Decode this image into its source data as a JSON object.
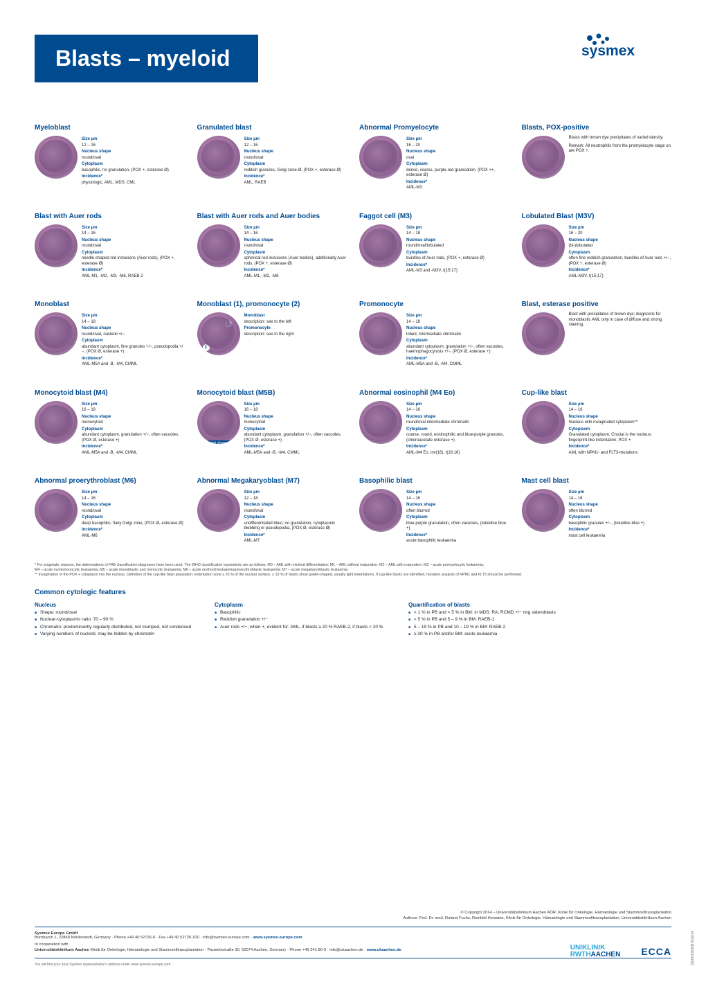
{
  "header": {
    "title": "Blasts – myeloid",
    "brand": "sysmex"
  },
  "cells": [
    {
      "title": "Myeloblast",
      "rows": [
        {
          "lbl": "Size µm",
          "val": "12 – 16"
        },
        {
          "lbl": "Nucleus shape",
          "val": "round/oval"
        },
        {
          "lbl": "Cytoplasm",
          "val": "basophilic, no granulation, (POX +, esterase Ø)"
        },
        {
          "lbl": "Incidence*",
          "val": "physiologic, AML, MDS, CML"
        }
      ]
    },
    {
      "title": "Granulated blast",
      "rows": [
        {
          "lbl": "Size µm",
          "val": "12 – 16"
        },
        {
          "lbl": "Nucleus shape",
          "val": "round/oval"
        },
        {
          "lbl": "Cytoplasm",
          "val": "reddish granules, Golgi zone Ø, (POX +, esterase Ø)"
        },
        {
          "lbl": "Incidence*",
          "val": "AML, RAEB"
        }
      ]
    },
    {
      "title": "Abnormal Promyelocyte",
      "rows": [
        {
          "lbl": "Size µm",
          "val": "16 – 20"
        },
        {
          "lbl": "Nucleus shape",
          "val": "oval"
        },
        {
          "lbl": "Cytoplasm",
          "val": "dense, coarse, purple-red granulation, (POX ++, esterase Ø)"
        },
        {
          "lbl": "Incidence*",
          "val": "AML-M3"
        }
      ]
    },
    {
      "title": "Blasts, POX-positive",
      "para": "Blasts with brown dye precipitates of varied density.\n\nRemark: All neutrophils from the promyelocyte stage on are POX +."
    },
    {
      "title": "Blast with Auer rods",
      "rows": [
        {
          "lbl": "Size µm",
          "val": "14 – 16"
        },
        {
          "lbl": "Nucleus shape",
          "val": "round/oval"
        },
        {
          "lbl": "Cytoplasm",
          "val": "needle-shaped red inclusions (Auer rods), (POX +, esterase Ø)"
        },
        {
          "lbl": "Incidence*",
          "val": "AML-M1, -M2, -M3, -M6, RAEB-2"
        }
      ]
    },
    {
      "title": "Blast with Auer rods and Auer bodies",
      "rows": [
        {
          "lbl": "Size µm",
          "val": "14 – 16"
        },
        {
          "lbl": "Nucleus shape",
          "val": "round/oval"
        },
        {
          "lbl": "Cytoplasm",
          "val": "spherical red inclusions (Auer bodies), additionally Auer rods, (POX +, esterase Ø)"
        },
        {
          "lbl": "Incidence*",
          "val": "AML-M1, -M2, -M6"
        }
      ]
    },
    {
      "title": "Faggot cell (M3)",
      "rows": [
        {
          "lbl": "Size µm",
          "val": "14 – 18"
        },
        {
          "lbl": "Nucleus shape",
          "val": "round/oval/lobulated"
        },
        {
          "lbl": "Cytoplasm",
          "val": "bundles of Auer rods, (POX +, esterase Ø)"
        },
        {
          "lbl": "Incidence*",
          "val": "AML-M3 and -M3V, t(15;17)"
        }
      ]
    },
    {
      "title": "Lobulated Blast (M3V)",
      "rows": [
        {
          "lbl": "Size µm",
          "val": "16 – 20"
        },
        {
          "lbl": "Nucleus shape",
          "val": "(bi-)lobulated"
        },
        {
          "lbl": "Cytoplasm",
          "val": "often fine reddish granulation, bundles of Auer rods +/−, (POX +, esterase Ø)"
        },
        {
          "lbl": "Incidence*",
          "val": "AML-M3V, t(15;17)"
        }
      ]
    },
    {
      "title": "Monoblast",
      "rows": [
        {
          "lbl": "Size µm",
          "val": "14 – 18"
        },
        {
          "lbl": "Nucleus shape",
          "val": "round/oval, nucleoli +/−"
        },
        {
          "lbl": "Cytoplasm",
          "val": "abundant cytoplasm, fine granules +/−, pseudopodia +/−, (POX Ø, esterase +)"
        },
        {
          "lbl": "Incidence*",
          "val": "AML-M5A and -B, -M4, CMML"
        }
      ]
    },
    {
      "title": "Monoblast (1), promonocyte (2)",
      "badges": [
        "1",
        "2"
      ],
      "rows": [
        {
          "lbl": "Monoblast",
          "val": "description: see to the left"
        },
        {
          "lbl": "Promonocyte",
          "val": "description: see to the right"
        }
      ]
    },
    {
      "title": "Promonocyte",
      "rows": [
        {
          "lbl": "Size µm",
          "val": "14 – 18"
        },
        {
          "lbl": "Nucleus shape",
          "val": "lobed, intermediate chromatin"
        },
        {
          "lbl": "Cytoplasm",
          "val": "abundant cytoplasm, granulation +/−, often vacuoles, haemophagocytosis +/−, (POX Ø, esterase +)"
        },
        {
          "lbl": "Incidence*",
          "val": "AML-M5A and -B, -M4, CMML"
        }
      ]
    },
    {
      "title": "Blast, esterase positive",
      "para": "Blast with precipitates of brown dye; diagnostic for monoblastic AML only in case of diffuse and strong staining."
    },
    {
      "title": "Monocytoid blast (M4)",
      "rows": [
        {
          "lbl": "Size µm",
          "val": "16 – 18"
        },
        {
          "lbl": "Nucleus shape",
          "val": "monocytoid"
        },
        {
          "lbl": "Cytoplasm",
          "val": "abundant cytoplasm, granulation +/−, often vacuoles, (POX Ø, esterase +)"
        },
        {
          "lbl": "Incidence*",
          "val": "AML-M5A and -B, -M4, CMML"
        }
      ]
    },
    {
      "title": "Monocytoid blast (M5B)",
      "overlay": "Platelet phagocytosis",
      "rows": [
        {
          "lbl": "Size µm",
          "val": "16 – 18"
        },
        {
          "lbl": "Nucleus shape",
          "val": "monocytoid"
        },
        {
          "lbl": "Cytoplasm",
          "val": "abundant cytoplasm, granulation +/−, often vacuoles, (POX Ø, esterase +)"
        },
        {
          "lbl": "Incidence*",
          "val": "AML-M5A and -B, -M4, CMML"
        }
      ]
    },
    {
      "title": "Abnormal eosinophil (M4 Eo)",
      "rows": [
        {
          "lbl": "Size µm",
          "val": "14 – 16"
        },
        {
          "lbl": "Nucleus shape",
          "val": "round/oval intermediate chromatin"
        },
        {
          "lbl": "Cytoplasm",
          "val": "coarse, round, eosinophilic and blue-purple granules, (chloroacetate esterase +)"
        },
        {
          "lbl": "Incidence*",
          "val": "AML-M4 Eo, inv(16), t(16;16)"
        }
      ]
    },
    {
      "title": "Cup-like blast",
      "rows": [
        {
          "lbl": "Size µm",
          "val": "14 – 16"
        },
        {
          "lbl": "Nucleus shape",
          "val": "Nucleus with invaginated cytoplasm**"
        },
        {
          "lbl": "Cytoplasm",
          "val": "Granulated cytoplasm. Crucial is the nucleus: fingerprint-like indentation; POX +"
        },
        {
          "lbl": "Incidence*",
          "val": "AML with NPM1- and FLT3-mutations"
        }
      ]
    },
    {
      "title": "Abnormal proerythroblast (M6)",
      "rows": [
        {
          "lbl": "Size µm",
          "val": "14 – 16"
        },
        {
          "lbl": "Nucleus shape",
          "val": "round/oval"
        },
        {
          "lbl": "Cytoplasm",
          "val": "deep basophilic, flaky Golgi zone, (POX Ø, esterase Ø)"
        },
        {
          "lbl": "Incidence*",
          "val": "AML-M6"
        }
      ]
    },
    {
      "title": "Abnormal Megakaryoblast (M7)",
      "rows": [
        {
          "lbl": "Size µm",
          "val": "12 – 18"
        },
        {
          "lbl": "Nucleus shape",
          "val": "round/oval"
        },
        {
          "lbl": "Cytoplasm",
          "val": "undifferentiated blast, no granulation, cytoplasmic blebbing or pseudopodia, (POX Ø, esterase Ø)"
        },
        {
          "lbl": "Incidence*",
          "val": "AML-M7"
        }
      ]
    },
    {
      "title": "Basophilic blast",
      "rows": [
        {
          "lbl": "Size µm",
          "val": "14 – 16"
        },
        {
          "lbl": "Nucleus shape",
          "val": "often blurred"
        },
        {
          "lbl": "Cytoplasm",
          "val": "blue-purple granulation, often vacuoles, (toluidine blue +)"
        },
        {
          "lbl": "Incidence*",
          "val": "acute basophilic leukaemia"
        }
      ]
    },
    {
      "title": "Mast cell blast",
      "rows": [
        {
          "lbl": "Size µm",
          "val": "14 – 16"
        },
        {
          "lbl": "Nucleus shape",
          "val": "often blurred"
        },
        {
          "lbl": "Cytoplasm",
          "val": "basophilic granules +/−, (toluidine blue +)"
        },
        {
          "lbl": "Incidence*",
          "val": "mast cell leukaemia"
        }
      ]
    }
  ],
  "footnotes": {
    "l1": "*  For pragmatic reasons, the abbreviations of FAB classification diagnoses have been used. The WHO classification equivalents are as follows: M0 – AML with minimal differentiation; M1 – AML without maturation; M2 – AML with maturation; M3 – acute promyelocytic leukaemia;",
    "l2": "   M4 – acute myelomonocytic leukaemia; M5 – acute monoblastic and monocytic leukaemia; M6 – acute erythroid leukaemia/proerythroblastic leukaemia; M7 – acute megakaryoblastic leukaemia.",
    "l3": "** Invagination of the POX + cytoplasm into the nucleus. Definition of the cup-like blast population: indentation zone ≥ 25 % of the nuclear surface, ≥ 10 % of blasts show goblet-shaped, usually light indentations. If cup-like blasts are identified, mutation analysis of NPM1 and FLT3 should be performed."
  },
  "features": {
    "title": "Common cytologic features",
    "nucleus": {
      "head": "Nucleus",
      "items": [
        "Shape: round/oval",
        "Nuclear-cytoplasmic ratio: 70 – 90 %",
        "Chromatin: predominantly regularly distributed, not clumped, not condensed",
        "Varying numbers of nucleoli; may be hidden by chromatin"
      ]
    },
    "cytoplasm": {
      "head": "Cytoplasm",
      "items": [
        "Basophilic",
        "Reddish granulation +/−",
        "Auer rods +/−; when +, evident for: AML, if blasts ≥ 20 % RAEB-2, if blasts < 20 %"
      ]
    },
    "quant": {
      "head": "Quantification of blasts",
      "items": [
        "< 1 % in PB and < 5 % in BM: in MDS: RA, RCMD +/− ring sideroblasts",
        "< 5 % in PB and 5 – 9 % in BM: RAEB-1",
        "5 – 19 % in PB and 10 – 19 % in BM: RAEB-2",
        "≥ 20 % in PB and/or BM: acute leukaemia"
      ]
    }
  },
  "meta": {
    "copyright": "© Copyright 2014 – Universitätsklinikum Aachen AÖR, Klinik für Onkologie, Hämatologie und Stammzelltransplantation",
    "authors": "Authors: Prof. Dr. med. Roland Fuchs, Reinhild Herwartz, Klinik für Onkologie, Hämatologie und Stammzelltransplantation, Universitätsklinikum Aachen",
    "company": "Sysmex Europe GmbH",
    "company_addr": "Bornbarch 1, 22848 Norderstedt, Germany · Phone +49 40 52726-0 · Fax +49 40 52726-100 · info@sysmex-europe.com · ",
    "company_url": "www.sysmex-europe.com",
    "coop_label": "In cooperation with",
    "coop_name": "Universitätsklinikum Aachen",
    "coop_rest": "  Klinik für Onkologie, Hämatologie und Stammzelltransplantation · Pauwelsstraße 30, 52074 Aachen, Germany · Phone +49 241 80-0 · info@ukaachen.de · ",
    "coop_url": "www.ukaachen.de",
    "rep": "You will find your local Sysmex representative's address under www.sysmex-europe.com",
    "docid": "ZE001199.EN.N.02/14",
    "uk1": "UNIKLINIK",
    "uk2": "RWTH",
    "uk3": "AACHEN",
    "ecca": "ECCA"
  }
}
